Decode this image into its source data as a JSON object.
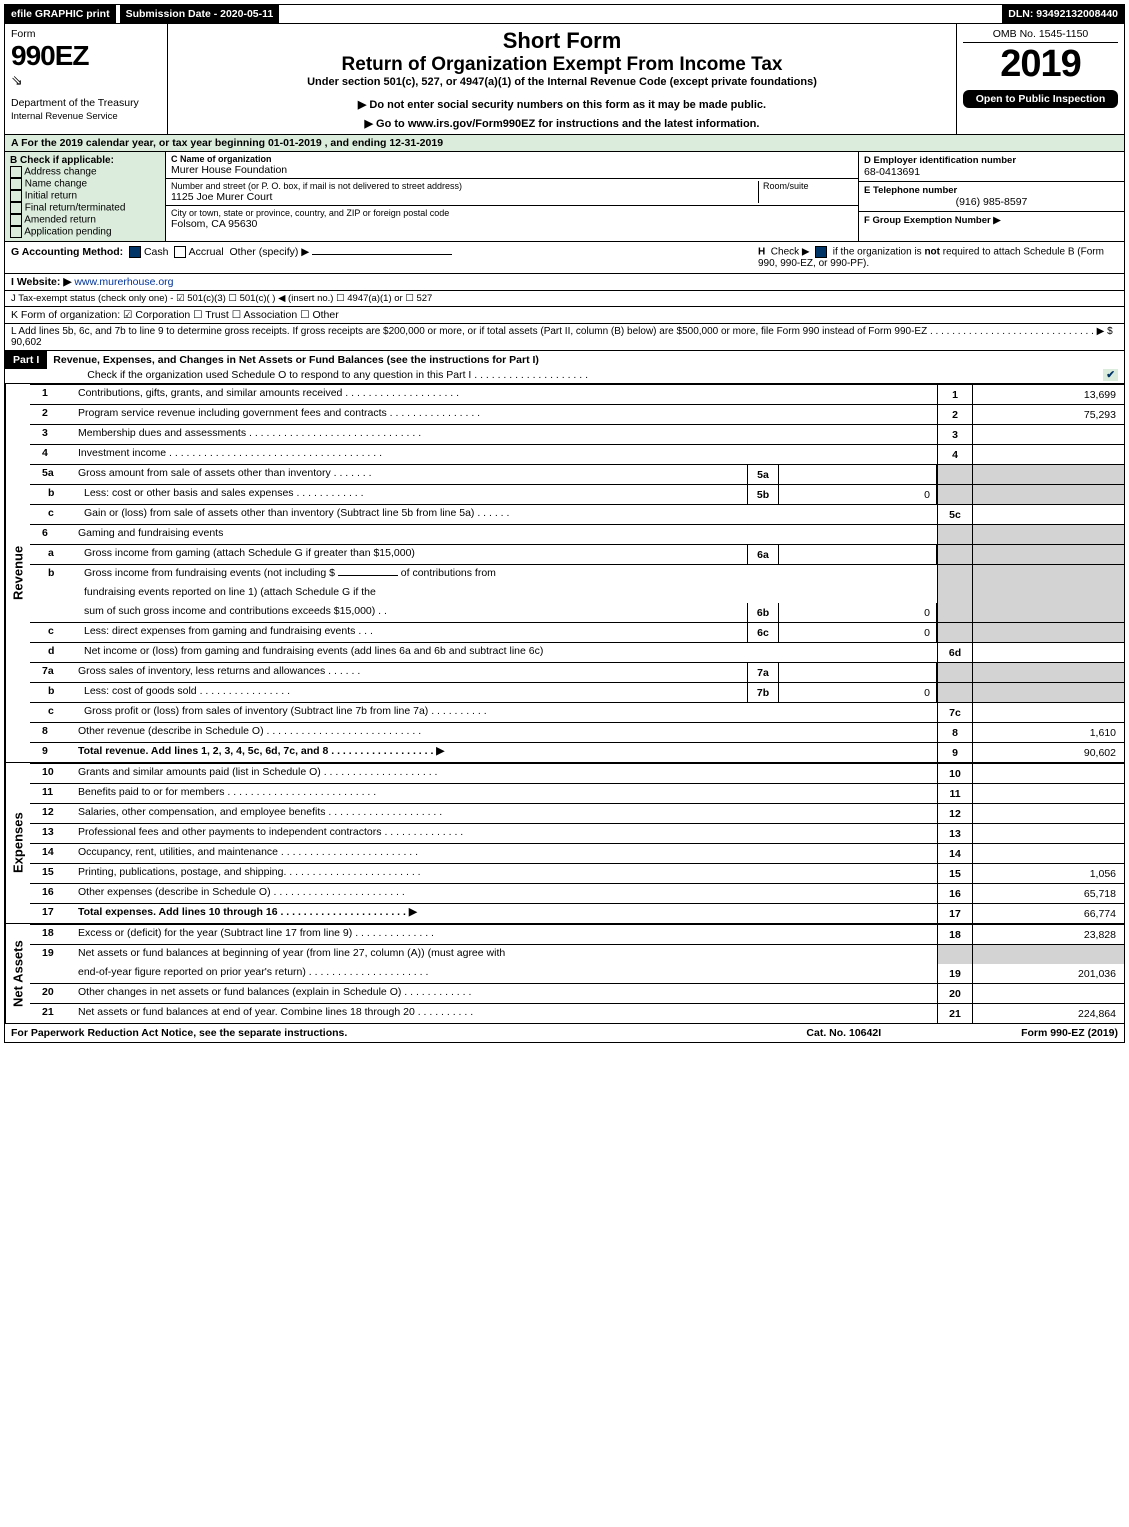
{
  "topbar": {
    "efile": "efile GRAPHIC print",
    "submission": "Submission Date - 2020-05-11",
    "dln": "DLN: 93492132008440"
  },
  "header": {
    "form_word": "Form",
    "form_number": "990EZ",
    "dept": "Department of the Treasury",
    "irs": "Internal Revenue Service",
    "short_form": "Short Form",
    "main_title": "Return of Organization Exempt From Income Tax",
    "under_section": "Under section 501(c), 527, or 4947(a)(1) of the Internal Revenue Code (except private foundations)",
    "do_not_enter": "▶ Do not enter social security numbers on this form as it may be made public.",
    "go_to": "▶ Go to www.irs.gov/Form990EZ for instructions and the latest information.",
    "omb": "OMB No. 1545-1150",
    "year": "2019",
    "open_public": "Open to Public Inspection"
  },
  "section_a": {
    "text": "A For the 2019 calendar year, or tax year beginning 01-01-2019 , and ending 12-31-2019"
  },
  "section_b": {
    "label": "B Check if applicable:",
    "items": [
      "Address change",
      "Name change",
      "Initial return",
      "Final return/terminated",
      "Amended return",
      "Application pending"
    ]
  },
  "section_c": {
    "name_label": "C Name of organization",
    "name": "Murer House Foundation",
    "street_label": "Number and street (or P. O. box, if mail is not delivered to street address)",
    "room_label": "Room/suite",
    "street": "1125 Joe Murer Court",
    "city_label": "City or town, state or province, country, and ZIP or foreign postal code",
    "city": "Folsom, CA  95630"
  },
  "section_d": {
    "label": "D Employer identification number",
    "value": "68-0413691"
  },
  "section_e": {
    "label": "E Telephone number",
    "value": "(916) 985-8597"
  },
  "section_f": {
    "label": "F Group Exemption Number  ▶"
  },
  "section_g": {
    "label": "G Accounting Method:",
    "options": [
      "Cash",
      "Accrual"
    ],
    "other": "Other (specify) ▶"
  },
  "section_h": {
    "text": "H  Check ▶  ☑  if the organization is not required to attach Schedule B (Form 990, 990-EZ, or 990-PF)."
  },
  "section_i": {
    "label": "I Website: ▶",
    "value": "www.murerhouse.org"
  },
  "section_j": {
    "text": "J Tax-exempt status (check only one) -  ☑ 501(c)(3) ☐  501(c)(  )  ◀ (insert no.) ☐  4947(a)(1) or  ☐  527"
  },
  "section_k": {
    "text": "K Form of organization:   ☑ Corporation   ☐ Trust   ☐ Association   ☐ Other"
  },
  "section_l": {
    "text": "L Add lines 5b, 6c, and 7b to line 9 to determine gross receipts. If gross receipts are $200,000 or more, or if total assets (Part II, column (B) below) are $500,000 or more, file Form 990 instead of Form 990-EZ  .  .  .  .  .  .  .  .  .  .  .  .  .  .  .  .  .  .  .  .  .  .  .  .  .  .  .  .  .  .  ▶ $ 90,602"
  },
  "part1": {
    "label": "Part I",
    "title": "Revenue, Expenses, and Changes in Net Assets or Fund Balances (see the instructions for Part I)",
    "check_text": "Check if the organization used Schedule O to respond to any question in this Part I .  .  .  .  .  .  .  .  .  .  .  .  .  .  .  .  .  .  .  ."
  },
  "revenue_label": "Revenue",
  "expenses_label": "Expenses",
  "netassets_label": "Net Assets",
  "lines": {
    "l1": {
      "n": "1",
      "desc": "Contributions, gifts, grants, and similar amounts received .  .  .  .  .  .  .  .  .  .  .  .  .  .  .  .  .  .  .  .",
      "rn": "1",
      "rv": "13,699"
    },
    "l2": {
      "n": "2",
      "desc": "Program service revenue including government fees and contracts .  .  .  .  .  .  .  .  .  .  .  .  .  .  .  .",
      "rn": "2",
      "rv": "75,293"
    },
    "l3": {
      "n": "3",
      "desc": "Membership dues and assessments .  .  .  .  .  .  .  .  .  .  .  .  .  .  .  .  .  .  .  .  .  .  .  .  .  .  .  .  .  .",
      "rn": "3",
      "rv": ""
    },
    "l4": {
      "n": "4",
      "desc": "Investment income .  .  .  .  .  .  .  .  .  .  .  .  .  .  .  .  .  .  .  .  .  .  .  .  .  .  .  .  .  .  .  .  .  .  .  .  .",
      "rn": "4",
      "rv": ""
    },
    "l5a": {
      "n": "5a",
      "desc": "Gross amount from sale of assets other than inventory .  .  .  .  .  .  .",
      "mn": "5a",
      "mv": ""
    },
    "l5b": {
      "n": "b",
      "desc": "Less: cost or other basis and sales expenses .  .  .  .  .  .  .  .  .  .  .  .",
      "mn": "5b",
      "mv": "0"
    },
    "l5c": {
      "n": "c",
      "desc": "Gain or (loss) from sale of assets other than inventory (Subtract line 5b from line 5a) .  .  .  .  .  .",
      "rn": "5c",
      "rv": ""
    },
    "l6": {
      "n": "6",
      "desc": "Gaming and fundraising events"
    },
    "l6a": {
      "n": "a",
      "desc": "Gross income from gaming (attach Schedule G if greater than $15,000)",
      "mn": "6a",
      "mv": ""
    },
    "l6b": {
      "n": "b",
      "desc_pre": "Gross income from fundraising events (not including $",
      "desc_mid": "of contributions from",
      "desc2": "fundraising events reported on line 1) (attach Schedule G if the",
      "desc3": "sum of such gross income and contributions exceeds $15,000)    .  .",
      "mn": "6b",
      "mv": "0"
    },
    "l6c": {
      "n": "c",
      "desc": "Less: direct expenses from gaming and fundraising events     .  .  .",
      "mn": "6c",
      "mv": "0"
    },
    "l6d": {
      "n": "d",
      "desc": "Net income or (loss) from gaming and fundraising events (add lines 6a and 6b and subtract line 6c)",
      "rn": "6d",
      "rv": ""
    },
    "l7a": {
      "n": "7a",
      "desc": "Gross sales of inventory, less returns and allowances .  .  .  .  .  .",
      "mn": "7a",
      "mv": ""
    },
    "l7b": {
      "n": "b",
      "desc": "Less: cost of goods sold            .  .  .  .  .  .  .  .  .  .  .  .  .  .  .  .",
      "mn": "7b",
      "mv": "0"
    },
    "l7c": {
      "n": "c",
      "desc": "Gross profit or (loss) from sales of inventory (Subtract line 7b from line 7a) .  .  .  .  .  .  .  .  .  .",
      "rn": "7c",
      "rv": ""
    },
    "l8": {
      "n": "8",
      "desc": "Other revenue (describe in Schedule O) .  .  .  .  .  .  .  .  .  .  .  .  .  .  .  .  .  .  .  .  .  .  .  .  .  .  .",
      "rn": "8",
      "rv": "1,610"
    },
    "l9": {
      "n": "9",
      "desc": "Total revenue. Add lines 1, 2, 3, 4, 5c, 6d, 7c, and 8  .  .  .  .  .  .  .  .  .  .  .  .  .  .  .  .  .  .    ▶",
      "rn": "9",
      "rv": "90,602",
      "bold": true
    },
    "l10": {
      "n": "10",
      "desc": "Grants and similar amounts paid (list in Schedule O) .  .  .  .  .  .  .  .  .  .  .  .  .  .  .  .  .  .  .  .",
      "rn": "10",
      "rv": ""
    },
    "l11": {
      "n": "11",
      "desc": "Benefits paid to or for members           .  .  .  .  .  .  .  .  .  .  .  .  .  .  .  .  .  .  .  .  .  .  .  .  .  .",
      "rn": "11",
      "rv": ""
    },
    "l12": {
      "n": "12",
      "desc": "Salaries, other compensation, and employee benefits .  .  .  .  .  .  .  .  .  .  .  .  .  .  .  .  .  .  .  .",
      "rn": "12",
      "rv": ""
    },
    "l13": {
      "n": "13",
      "desc": "Professional fees and other payments to independent contractors .  .  .  .  .  .  .  .  .  .  .  .  .  .",
      "rn": "13",
      "rv": ""
    },
    "l14": {
      "n": "14",
      "desc": "Occupancy, rent, utilities, and maintenance .  .  .  .  .  .  .  .  .  .  .  .  .  .  .  .  .  .  .  .  .  .  .  .",
      "rn": "14",
      "rv": ""
    },
    "l15": {
      "n": "15",
      "desc": "Printing, publications, postage, and shipping. .  .  .  .  .  .  .  .  .  .  .  .  .  .  .  .  .  .  .  .  .  .  .",
      "rn": "15",
      "rv": "1,056"
    },
    "l16": {
      "n": "16",
      "desc": "Other expenses (describe in Schedule O)        .  .  .  .  .  .  .  .  .  .  .  .  .  .  .  .  .  .  .  .  .  .  .",
      "rn": "16",
      "rv": "65,718"
    },
    "l17": {
      "n": "17",
      "desc": "Total expenses. Add lines 10 through 16     .  .  .  .  .  .  .  .  .  .  .  .  .  .  .  .  .  .  .  .  .  .   ▶",
      "rn": "17",
      "rv": "66,774",
      "bold": true
    },
    "l18": {
      "n": "18",
      "desc": "Excess or (deficit) for the year (Subtract line 17 from line 9)       .  .  .  .  .  .  .  .  .  .  .  .  .  .",
      "rn": "18",
      "rv": "23,828"
    },
    "l19": {
      "n": "19",
      "desc": "Net assets or fund balances at beginning of year (from line 27, column (A)) (must agree with",
      "desc2": "end-of-year figure reported on prior year's return) .  .  .  .  .  .  .  .  .  .  .  .  .  .  .  .  .  .  .  .  .",
      "rn": "19",
      "rv": "201,036"
    },
    "l20": {
      "n": "20",
      "desc": "Other changes in net assets or fund balances (explain in Schedule O) .  .  .  .  .  .  .  .  .  .  .  .",
      "rn": "20",
      "rv": ""
    },
    "l21": {
      "n": "21",
      "desc": "Net assets or fund balances at end of year. Combine lines 18 through 20 .  .  .  .  .  .  .  .  .  .",
      "rn": "21",
      "rv": "224,864"
    }
  },
  "footer": {
    "left": "For Paperwork Reduction Act Notice, see the separate instructions.",
    "center": "Cat. No. 10642I",
    "right": "Form 990-EZ (2019)"
  }
}
